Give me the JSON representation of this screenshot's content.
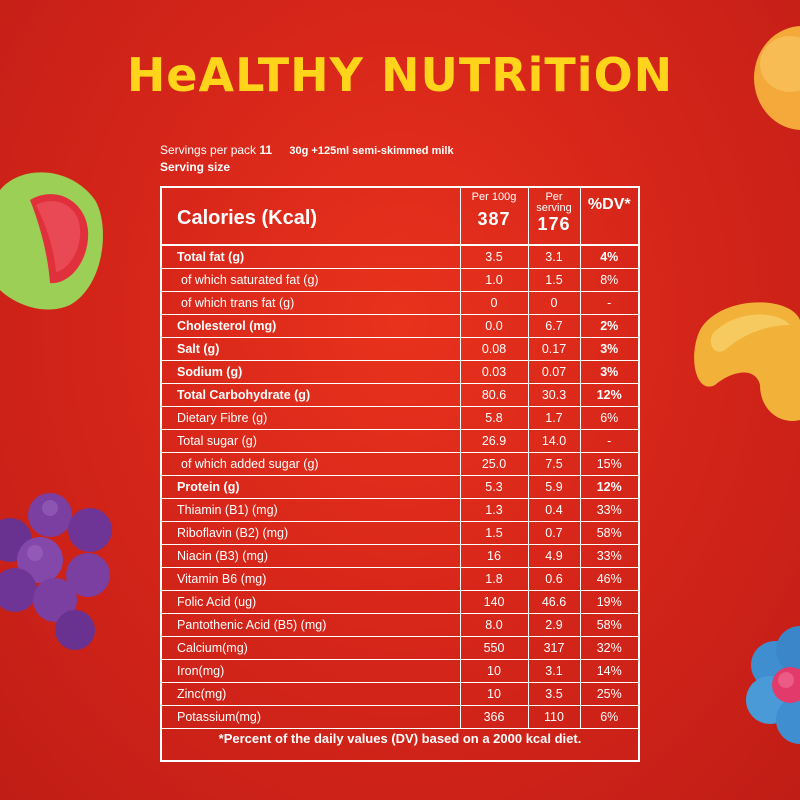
{
  "title": "HeALTHY NUTRiTiON",
  "servings": {
    "per_pack_label": "Servings  per pack",
    "per_pack_value": "11",
    "serving_amount": "30g +125ml semi-skimmed milk",
    "serving_size_label": "Serving size"
  },
  "header": {
    "calories_label": "Calories (Kcal)",
    "per100g_label": "Per 100g",
    "per100g_value": "387",
    "perserving_label": "Per serving",
    "perserving_value": "176",
    "dv_label": "%DV*"
  },
  "rows": [
    {
      "name": "Total fat (g)",
      "per100": "3.5",
      "serving": "3.1",
      "dv": "4%",
      "bold": true,
      "indent": false
    },
    {
      "name": "of which saturated fat (g)",
      "per100": "1.0",
      "serving": "1.5",
      "dv": "8%",
      "bold": false,
      "indent": true
    },
    {
      "name": "of which trans fat (g)",
      "per100": "0",
      "serving": "0",
      "dv": "-",
      "bold": false,
      "indent": true
    },
    {
      "name": "Cholesterol (mg)",
      "per100": "0.0",
      "serving": "6.7",
      "dv": "2%",
      "bold": true,
      "indent": false
    },
    {
      "name": "Salt (g)",
      "per100": "0.08",
      "serving": "0.17",
      "dv": "3%",
      "bold": true,
      "indent": false
    },
    {
      "name": "Sodium (g)",
      "per100": "0.03",
      "serving": "0.07",
      "dv": "3%",
      "bold": true,
      "indent": false
    },
    {
      "name": "Total Carbohydrate (g)",
      "per100": "80.6",
      "serving": "30.3",
      "dv": "12%",
      "bold": true,
      "indent": false
    },
    {
      "name": "Dietary Fibre (g)",
      "per100": "5.8",
      "serving": "1.7",
      "dv": "6%",
      "bold": false,
      "indent": false
    },
    {
      "name": "Total sugar (g)",
      "per100": "26.9",
      "serving": "14.0",
      "dv": "-",
      "bold": false,
      "indent": false
    },
    {
      "name": "of which added sugar (g)",
      "per100": "25.0",
      "serving": "7.5",
      "dv": "15%",
      "bold": false,
      "indent": true
    },
    {
      "name": "Protein (g)",
      "per100": "5.3",
      "serving": "5.9",
      "dv": "12%",
      "bold": true,
      "indent": false
    },
    {
      "name": "Thiamin (B1) (mg)",
      "per100": "1.3",
      "serving": "0.4",
      "dv": "33%",
      "bold": false,
      "indent": false
    },
    {
      "name": "Riboflavin (B2) (mg)",
      "per100": "1.5",
      "serving": "0.7",
      "dv": "58%",
      "bold": false,
      "indent": false
    },
    {
      "name": "Niacin (B3) (mg)",
      "per100": "16",
      "serving": "4.9",
      "dv": "33%",
      "bold": false,
      "indent": false
    },
    {
      "name": "Vitamin B6 (mg)",
      "per100": "1.8",
      "serving": "0.6",
      "dv": "46%",
      "bold": false,
      "indent": false
    },
    {
      "name": "Folic Acid (ug)",
      "per100": "140",
      "serving": "46.6",
      "dv": "19%",
      "bold": false,
      "indent": false
    },
    {
      "name": "Pantothenic Acid (B5) (mg)",
      "per100": "8.0",
      "serving": "2.9",
      "dv": "58%",
      "bold": false,
      "indent": false
    },
    {
      "name": "Calcium(mg)",
      "per100": "550",
      "serving": "317",
      "dv": "32%",
      "bold": false,
      "indent": false
    },
    {
      "name": "Iron(mg)",
      "per100": "10",
      "serving": "3.1",
      "dv": "14%",
      "bold": false,
      "indent": false
    },
    {
      "name": "Zinc(mg)",
      "per100": "10",
      "serving": "3.5",
      "dv": "25%",
      "bold": false,
      "indent": false
    },
    {
      "name": "Potassium(mg)",
      "per100": "366",
      "serving": "110",
      "dv": "6%",
      "bold": false,
      "indent": false
    }
  ],
  "footnote": "*Percent of the daily values (DV) based on a 2000 kcal diet.",
  "colors": {
    "background": "#d7261a",
    "title": "#ffd41a",
    "text": "#ffffff"
  }
}
